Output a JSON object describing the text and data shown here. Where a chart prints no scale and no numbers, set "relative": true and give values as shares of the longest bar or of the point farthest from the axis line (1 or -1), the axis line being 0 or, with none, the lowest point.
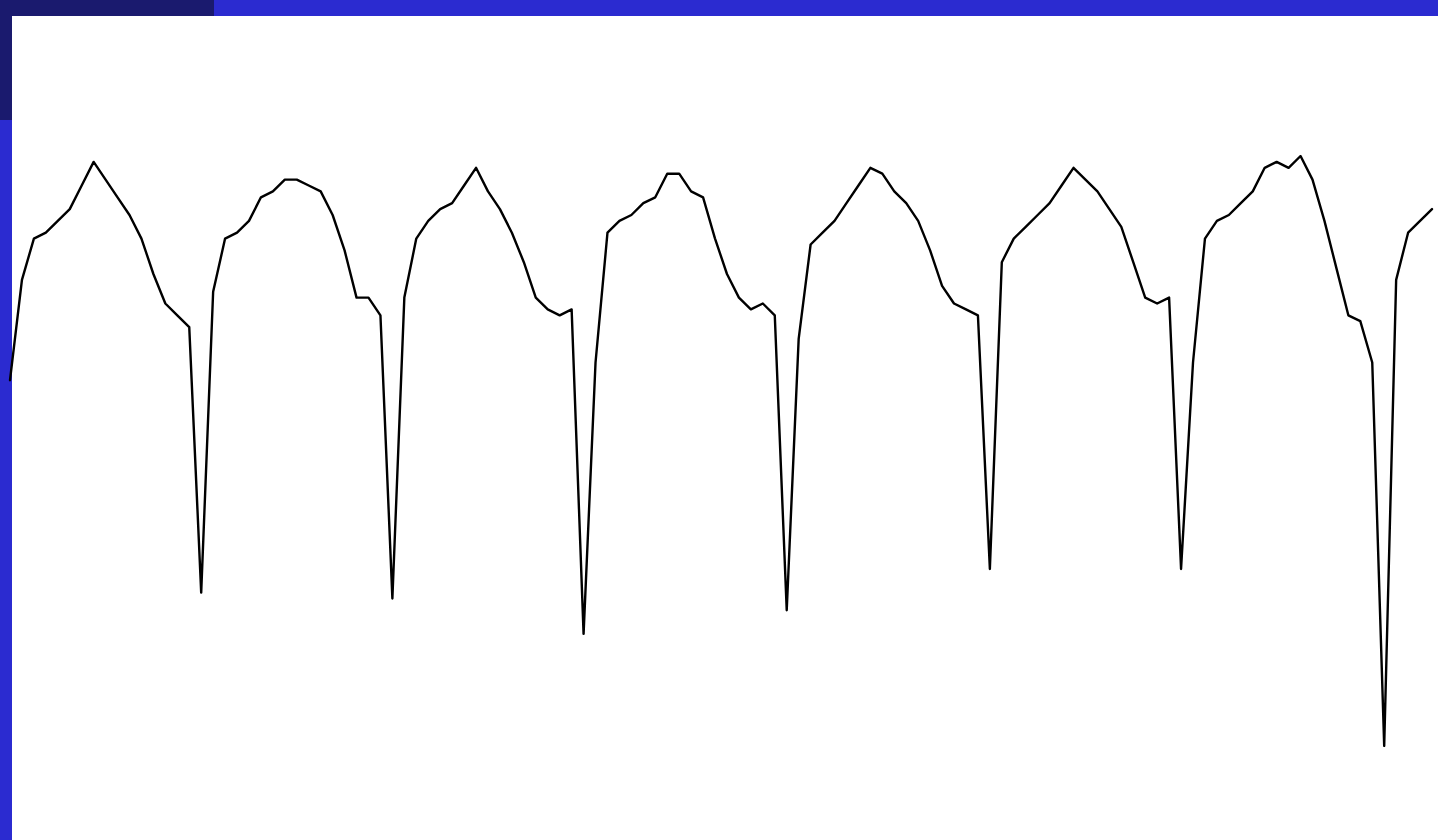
{
  "chart_data": {
    "type": "line",
    "relative": true,
    "marker": "none",
    "categories": [
      null,
      null,
      null,
      null,
      null,
      null,
      null,
      null,
      null,
      null,
      null,
      null,
      null,
      null,
      null,
      null,
      null,
      null,
      null,
      null,
      null,
      null,
      null,
      null,
      null,
      null,
      null,
      null,
      null,
      null,
      null,
      null,
      null,
      null,
      null,
      null,
      null,
      null,
      null,
      null,
      null,
      null,
      null,
      null,
      null,
      null,
      null,
      null,
      null,
      null,
      null,
      null,
      null,
      null,
      null,
      null,
      null,
      null,
      null,
      null,
      null,
      null,
      null,
      null,
      null,
      null,
      null,
      null,
      null,
      null,
      null,
      null,
      null,
      null,
      null,
      null,
      null,
      null,
      null,
      null,
      null,
      null,
      null,
      null,
      null,
      null,
      null,
      null,
      null,
      null,
      null,
      null,
      null,
      null,
      null,
      null,
      null,
      null,
      null,
      null,
      null,
      null,
      null,
      null,
      null,
      null,
      null,
      null,
      null,
      null,
      null,
      null,
      null,
      null,
      null,
      null,
      null,
      null,
      null,
      null
    ],
    "series": [
      {
        "color": "#000000",
        "values": [
          0.62,
          0.79,
          0.86,
          0.87,
          0.89,
          0.91,
          0.95,
          0.99,
          0.96,
          0.93,
          0.9,
          0.86,
          0.8,
          0.75,
          0.73,
          0.71,
          0.26,
          0.77,
          0.86,
          0.87,
          0.89,
          0.93,
          0.94,
          0.96,
          0.96,
          0.95,
          0.94,
          0.9,
          0.84,
          0.76,
          0.76,
          0.73,
          0.25,
          0.76,
          0.86,
          0.89,
          0.91,
          0.92,
          0.95,
          0.98,
          0.94,
          0.91,
          0.87,
          0.82,
          0.76,
          0.74,
          0.73,
          0.74,
          0.19,
          0.65,
          0.87,
          0.89,
          0.9,
          0.92,
          0.93,
          0.97,
          0.97,
          0.94,
          0.93,
          0.86,
          0.8,
          0.76,
          0.74,
          0.75,
          0.73,
          0.23,
          0.69,
          0.85,
          0.87,
          0.89,
          0.92,
          0.95,
          0.98,
          0.97,
          0.94,
          0.92,
          0.89,
          0.84,
          0.78,
          0.75,
          0.74,
          0.73,
          0.3,
          0.82,
          0.86,
          0.88,
          0.9,
          0.92,
          0.95,
          0.98,
          0.96,
          0.94,
          0.91,
          0.88,
          0.82,
          0.76,
          0.75,
          0.76,
          0.3,
          0.65,
          0.86,
          0.89,
          0.9,
          0.92,
          0.94,
          0.98,
          0.99,
          0.98,
          1,
          0.96,
          0.89,
          0.81,
          0.73,
          0.72,
          0.65,
          0,
          0.79,
          0.87,
          0.89,
          0.91
        ]
      }
    ]
  }
}
